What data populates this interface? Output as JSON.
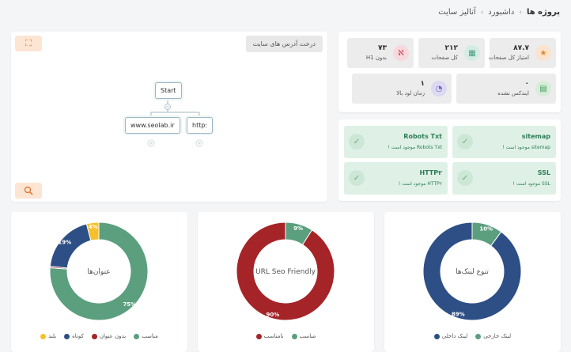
{
  "breadcrumb": [
    "پروژه ها",
    "داشبورد",
    "آنالیز سایت"
  ],
  "tree": {
    "title": "درخت آدرس های سایت",
    "nodes": {
      "root": "Start",
      "child_left": "www.seolab.ir",
      "child_right": "http:"
    }
  },
  "stats": [
    {
      "value": "۸۷.۷",
      "label": "امتیاز کل صفحات",
      "icon": "star-icon",
      "icon_bg": "#fbe3cf",
      "icon_color": "#e0892e"
    },
    {
      "value": "۲۱۲",
      "label": "کل صفحات",
      "icon": "pages-icon",
      "icon_bg": "#d4ece4",
      "icon_color": "#4a9a80"
    },
    {
      "value": "۷۳",
      "label": "بدون H1",
      "icon": "no-heading-icon",
      "icon_bg": "#f7d8dc",
      "icon_color": "#c03a4a"
    },
    {
      "value": "۰",
      "label": "ایندکس نشده",
      "icon": "document-icon",
      "icon_bg": "#d7ecd9",
      "icon_color": "#3f9a55"
    },
    {
      "value": "۱",
      "label": "زمان لود بالا",
      "icon": "speed-icon",
      "icon_bg": "#dcd9f2",
      "icon_color": "#6a5bc3"
    }
  ],
  "checks": [
    {
      "title": "sitemap",
      "sub": "sitemap موجود است !"
    },
    {
      "title": "Robots Txt",
      "sub": "Robots Txt موجود است !"
    },
    {
      "title": "SSL",
      "sub": "SSL موجود است !"
    },
    {
      "title": "HTTP۲",
      "sub": "HTTP۲ موجود است !"
    }
  ],
  "colors": {
    "green": "#5b9f7e",
    "blue": "#2e4f86",
    "red": "#a52428",
    "yellow": "#f5c02a",
    "accent": "#e07b39"
  },
  "chart_data": [
    {
      "type": "pie",
      "title": "تنوع لینک‌ها",
      "categories": [
        "لینک خارجی",
        "لینک داخلی"
      ],
      "values": [
        10,
        89
      ],
      "value_labels": [
        "10%",
        "89%"
      ],
      "colors": [
        "#5b9f7e",
        "#2e4f86"
      ]
    },
    {
      "type": "pie",
      "title": "URL Seo Friendly",
      "categories": [
        "مناسب",
        "نامناسب"
      ],
      "values": [
        9,
        90
      ],
      "value_labels": [
        "9%",
        "90%"
      ],
      "colors": [
        "#5b9f7e",
        "#a52428"
      ]
    },
    {
      "type": "pie",
      "title": "عنوان‌ها",
      "categories": [
        "مناسب",
        "بدون عنوان",
        "کوتاه",
        "بلند"
      ],
      "values": [
        75,
        0.5,
        19,
        4
      ],
      "value_labels": [
        "75%",
        "",
        "19%",
        "4%"
      ],
      "colors": [
        "#5b9f7e",
        "#a52428",
        "#2e4f86",
        "#f5c02a"
      ]
    }
  ]
}
